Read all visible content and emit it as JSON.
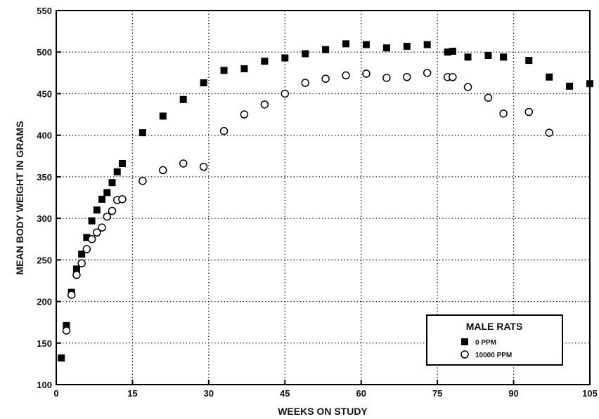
{
  "chart_data": {
    "type": "scatter",
    "title": "",
    "xlabel": "WEEKS ON STUDY",
    "ylabel": "MEAN BODY WEIGHT IN GRAMS",
    "xlim": [
      0,
      105
    ],
    "ylim": [
      100,
      550
    ],
    "xticks": [
      0,
      15,
      30,
      45,
      60,
      75,
      90,
      105
    ],
    "yticks": [
      100,
      150,
      200,
      250,
      300,
      350,
      400,
      450,
      500,
      550
    ],
    "grid": true,
    "legend": {
      "title": "MALE RATS",
      "placement": "bottom-right",
      "entries": [
        "0 PPM",
        "10000 PPM"
      ]
    },
    "series": [
      {
        "name": "0 PPM",
        "marker": "filled-square",
        "points": [
          [
            1,
            132
          ],
          [
            2,
            171
          ],
          [
            3,
            211
          ],
          [
            4,
            239
          ],
          [
            5,
            257
          ],
          [
            6,
            277
          ],
          [
            7,
            297
          ],
          [
            8,
            310
          ],
          [
            9,
            323
          ],
          [
            10,
            331
          ],
          [
            11,
            343
          ],
          [
            12,
            356
          ],
          [
            13,
            366
          ],
          [
            17,
            403
          ],
          [
            21,
            423
          ],
          [
            25,
            443
          ],
          [
            29,
            463
          ],
          [
            33,
            478
          ],
          [
            37,
            480
          ],
          [
            41,
            489
          ],
          [
            45,
            493
          ],
          [
            49,
            498
          ],
          [
            53,
            503
          ],
          [
            57,
            510
          ],
          [
            61,
            509
          ],
          [
            65,
            505
          ],
          [
            69,
            507
          ],
          [
            73,
            509
          ],
          [
            77,
            500
          ],
          [
            78,
            501
          ],
          [
            81,
            494
          ],
          [
            85,
            496
          ],
          [
            88,
            494
          ],
          [
            93,
            490
          ],
          [
            97,
            470
          ],
          [
            101,
            459
          ],
          [
            105,
            462
          ]
        ]
      },
      {
        "name": "10000 PPM",
        "marker": "open-circle",
        "points": [
          [
            2,
            165
          ],
          [
            3,
            208
          ],
          [
            4,
            232
          ],
          [
            5,
            246
          ],
          [
            6,
            263
          ],
          [
            7,
            275
          ],
          [
            8,
            283
          ],
          [
            9,
            289
          ],
          [
            10,
            302
          ],
          [
            11,
            309
          ],
          [
            12,
            322
          ],
          [
            13,
            323
          ],
          [
            17,
            345
          ],
          [
            21,
            358
          ],
          [
            25,
            366
          ],
          [
            29,
            362
          ],
          [
            33,
            405
          ],
          [
            37,
            425
          ],
          [
            41,
            437
          ],
          [
            45,
            450
          ],
          [
            49,
            463
          ],
          [
            53,
            468
          ],
          [
            57,
            472
          ],
          [
            61,
            474
          ],
          [
            65,
            469
          ],
          [
            69,
            470
          ],
          [
            73,
            475
          ],
          [
            77,
            470
          ],
          [
            78,
            470
          ],
          [
            81,
            458
          ],
          [
            85,
            445
          ],
          [
            88,
            426
          ],
          [
            93,
            428
          ],
          [
            97,
            403
          ]
        ]
      }
    ]
  }
}
